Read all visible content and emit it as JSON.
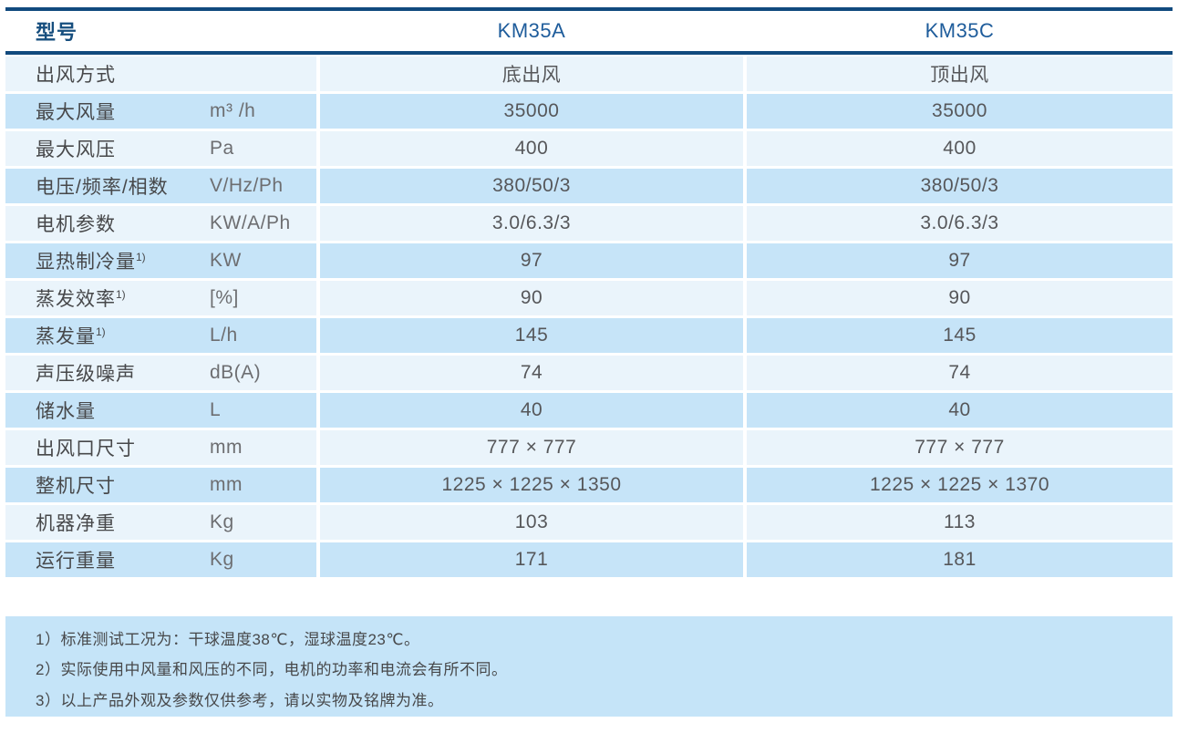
{
  "table": {
    "header": {
      "model_label": "型号",
      "columns": [
        "KM35A",
        "KM35C"
      ]
    },
    "rows": [
      {
        "label": "出风方式",
        "sup": "",
        "unit": "",
        "km35a": "底出风",
        "km35c": "顶出风"
      },
      {
        "label": "最大风量",
        "sup": "",
        "unit": "m³ /h",
        "km35a": "35000",
        "km35c": "35000"
      },
      {
        "label": "最大风压",
        "sup": "",
        "unit": "Pa",
        "km35a": "400",
        "km35c": "400"
      },
      {
        "label": "电压/频率/相数",
        "sup": "",
        "unit": "V/Hz/Ph",
        "km35a": "380/50/3",
        "km35c": "380/50/3"
      },
      {
        "label": "电机参数",
        "sup": "",
        "unit": "KW/A/Ph",
        "km35a": "3.0/6.3/3",
        "km35c": "3.0/6.3/3"
      },
      {
        "label": "显热制冷量",
        "sup": "1)",
        "unit": "KW",
        "km35a": "97",
        "km35c": "97"
      },
      {
        "label": "蒸发效率",
        "sup": "1)",
        "unit": "[%]",
        "km35a": "90",
        "km35c": "90"
      },
      {
        "label": "蒸发量",
        "sup": "1)",
        "unit": "L/h",
        "km35a": "145",
        "km35c": "145"
      },
      {
        "label": "声压级噪声",
        "sup": "",
        "unit": "dB(A)",
        "km35a": "74",
        "km35c": "74"
      },
      {
        "label": "储水量",
        "sup": "",
        "unit": "L",
        "km35a": "40",
        "km35c": "40"
      },
      {
        "label": "出风口尺寸",
        "sup": "",
        "unit": "mm",
        "km35a": "777 × 777",
        "km35c": "777 × 777"
      },
      {
        "label": "整机尺寸",
        "sup": "",
        "unit": "mm",
        "km35a": "1225 × 1225 × 1350",
        "km35c": "1225 × 1225 × 1370"
      },
      {
        "label": "机器净重",
        "sup": "",
        "unit": "Kg",
        "km35a": "103",
        "km35c": "113"
      },
      {
        "label": "运行重量",
        "sup": "",
        "unit": "Kg",
        "km35a": "171",
        "km35c": "181"
      }
    ]
  },
  "notes": [
    "1）标准测试工况为：干球温度38℃，湿球温度23℃。",
    "2）实际使用中风量和风压的不同，电机的功率和电流会有所不同。",
    "3）以上产品外观及参数仅供参考，请以实物及铭牌为准。"
  ],
  "colors": {
    "accent_border": "#114A7E",
    "header_model_text": "#1E5C9B",
    "header_label_text": "#164E7E",
    "row_light": "#EAF4FB",
    "row_dark": "#C6E4F8",
    "notes_panel": "#C5E4F8",
    "body_text": "#56575A"
  }
}
